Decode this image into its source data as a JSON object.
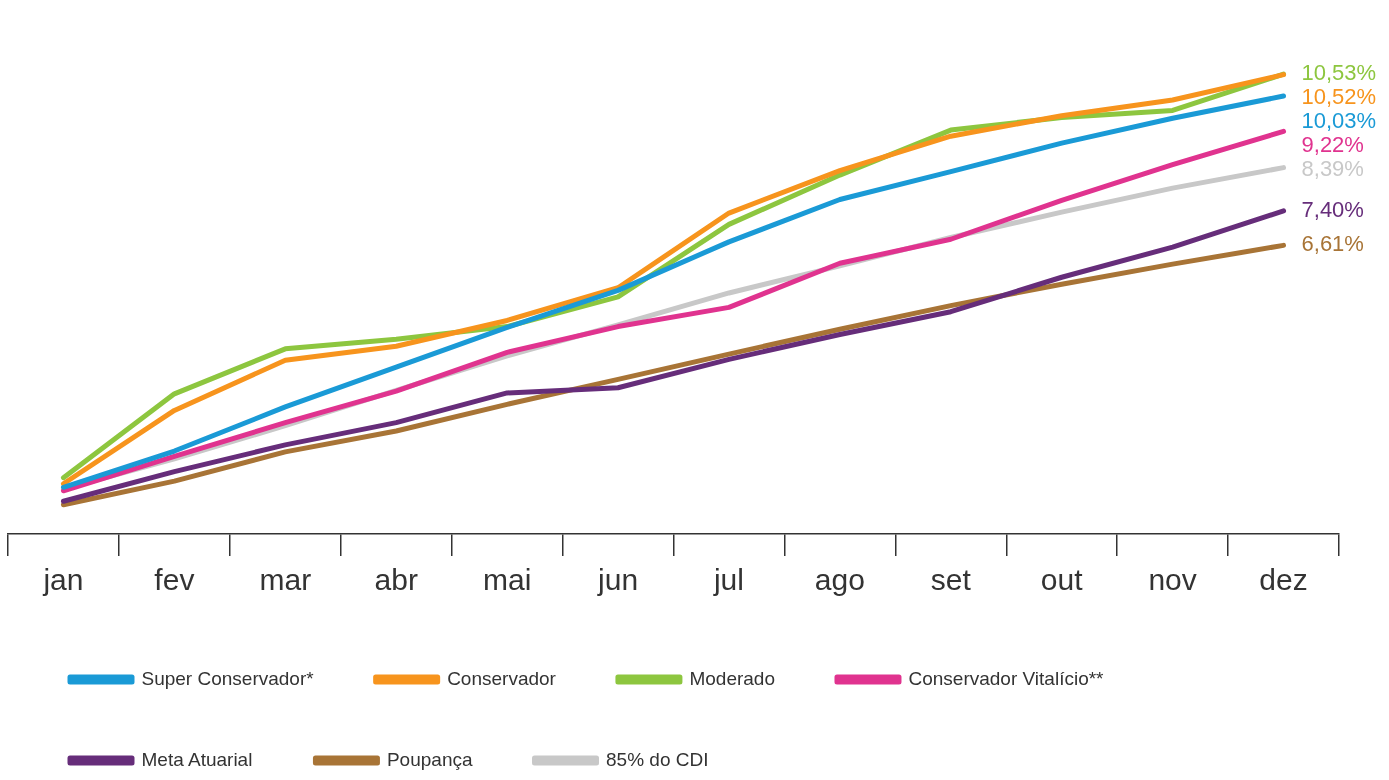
{
  "chart_data": {
    "type": "line",
    "categories": [
      "jan",
      "fev",
      "mar",
      "abr",
      "mai",
      "jun",
      "jul",
      "ago",
      "set",
      "out",
      "nov",
      "dez"
    ],
    "tick_labels": "x",
    "grid": false,
    "legend": "bottom",
    "marker": "none",
    "line_style": "solid",
    "series": [
      {
        "name": "Super Conservador*",
        "color": "#1a9ad6",
        "values": [
          1.07,
          1.9,
          2.91,
          3.82,
          4.73,
          5.58,
          6.69,
          7.66,
          8.3,
          8.95,
          9.52,
          10.03
        ],
        "value_labels": [
          null,
          null,
          null,
          null,
          null,
          null,
          null,
          null,
          null,
          null,
          null,
          "10,03%"
        ]
      },
      {
        "name": "Conservador",
        "color": "#f7941d",
        "values": [
          1.15,
          2.83,
          3.98,
          4.3,
          4.89,
          5.64,
          7.35,
          8.32,
          9.11,
          9.58,
          9.94,
          10.52
        ],
        "value_labels": [
          null,
          null,
          null,
          null,
          null,
          null,
          null,
          null,
          null,
          null,
          null,
          "10,52%"
        ]
      },
      {
        "name": "Moderado",
        "color": "#8dc63f",
        "values": [
          1.29,
          3.21,
          4.24,
          4.46,
          4.75,
          5.43,
          7.09,
          8.22,
          9.25,
          9.54,
          9.7,
          10.53
        ],
        "value_labels": [
          null,
          null,
          null,
          null,
          null,
          null,
          null,
          null,
          null,
          null,
          null,
          "10,53%"
        ]
      },
      {
        "name": "Conservador Vitalício**",
        "color": "#e0338f",
        "values": [
          0.99,
          1.78,
          2.55,
          3.27,
          4.16,
          4.75,
          5.19,
          6.2,
          6.75,
          7.64,
          8.46,
          9.22
        ],
        "value_labels": [
          null,
          null,
          null,
          null,
          null,
          null,
          null,
          null,
          null,
          null,
          null,
          "9,22%"
        ]
      },
      {
        "name": "Meta Atuarial",
        "color": "#662d7a",
        "values": [
          0.75,
          1.43,
          2.04,
          2.55,
          3.23,
          3.35,
          4.0,
          4.57,
          5.09,
          5.88,
          6.57,
          7.4
        ],
        "value_labels": [
          null,
          null,
          null,
          null,
          null,
          null,
          null,
          null,
          null,
          null,
          null,
          "7,40%"
        ]
      },
      {
        "name": "Poupança",
        "color": "#a87436",
        "values": [
          0.67,
          1.21,
          1.88,
          2.36,
          2.97,
          3.54,
          4.12,
          4.69,
          5.23,
          5.72,
          6.18,
          6.61
        ],
        "value_labels": [
          null,
          null,
          null,
          null,
          null,
          null,
          null,
          null,
          null,
          null,
          null,
          "6,61%"
        ]
      },
      {
        "name": "85% do CDI",
        "color": "#c8c8c8",
        "values": [
          1.03,
          1.72,
          2.48,
          3.29,
          4.08,
          4.79,
          5.52,
          6.14,
          6.79,
          7.37,
          7.92,
          8.39
        ],
        "value_labels": [
          null,
          null,
          null,
          null,
          null,
          null,
          null,
          null,
          null,
          null,
          null,
          "8,39%"
        ]
      }
    ]
  }
}
